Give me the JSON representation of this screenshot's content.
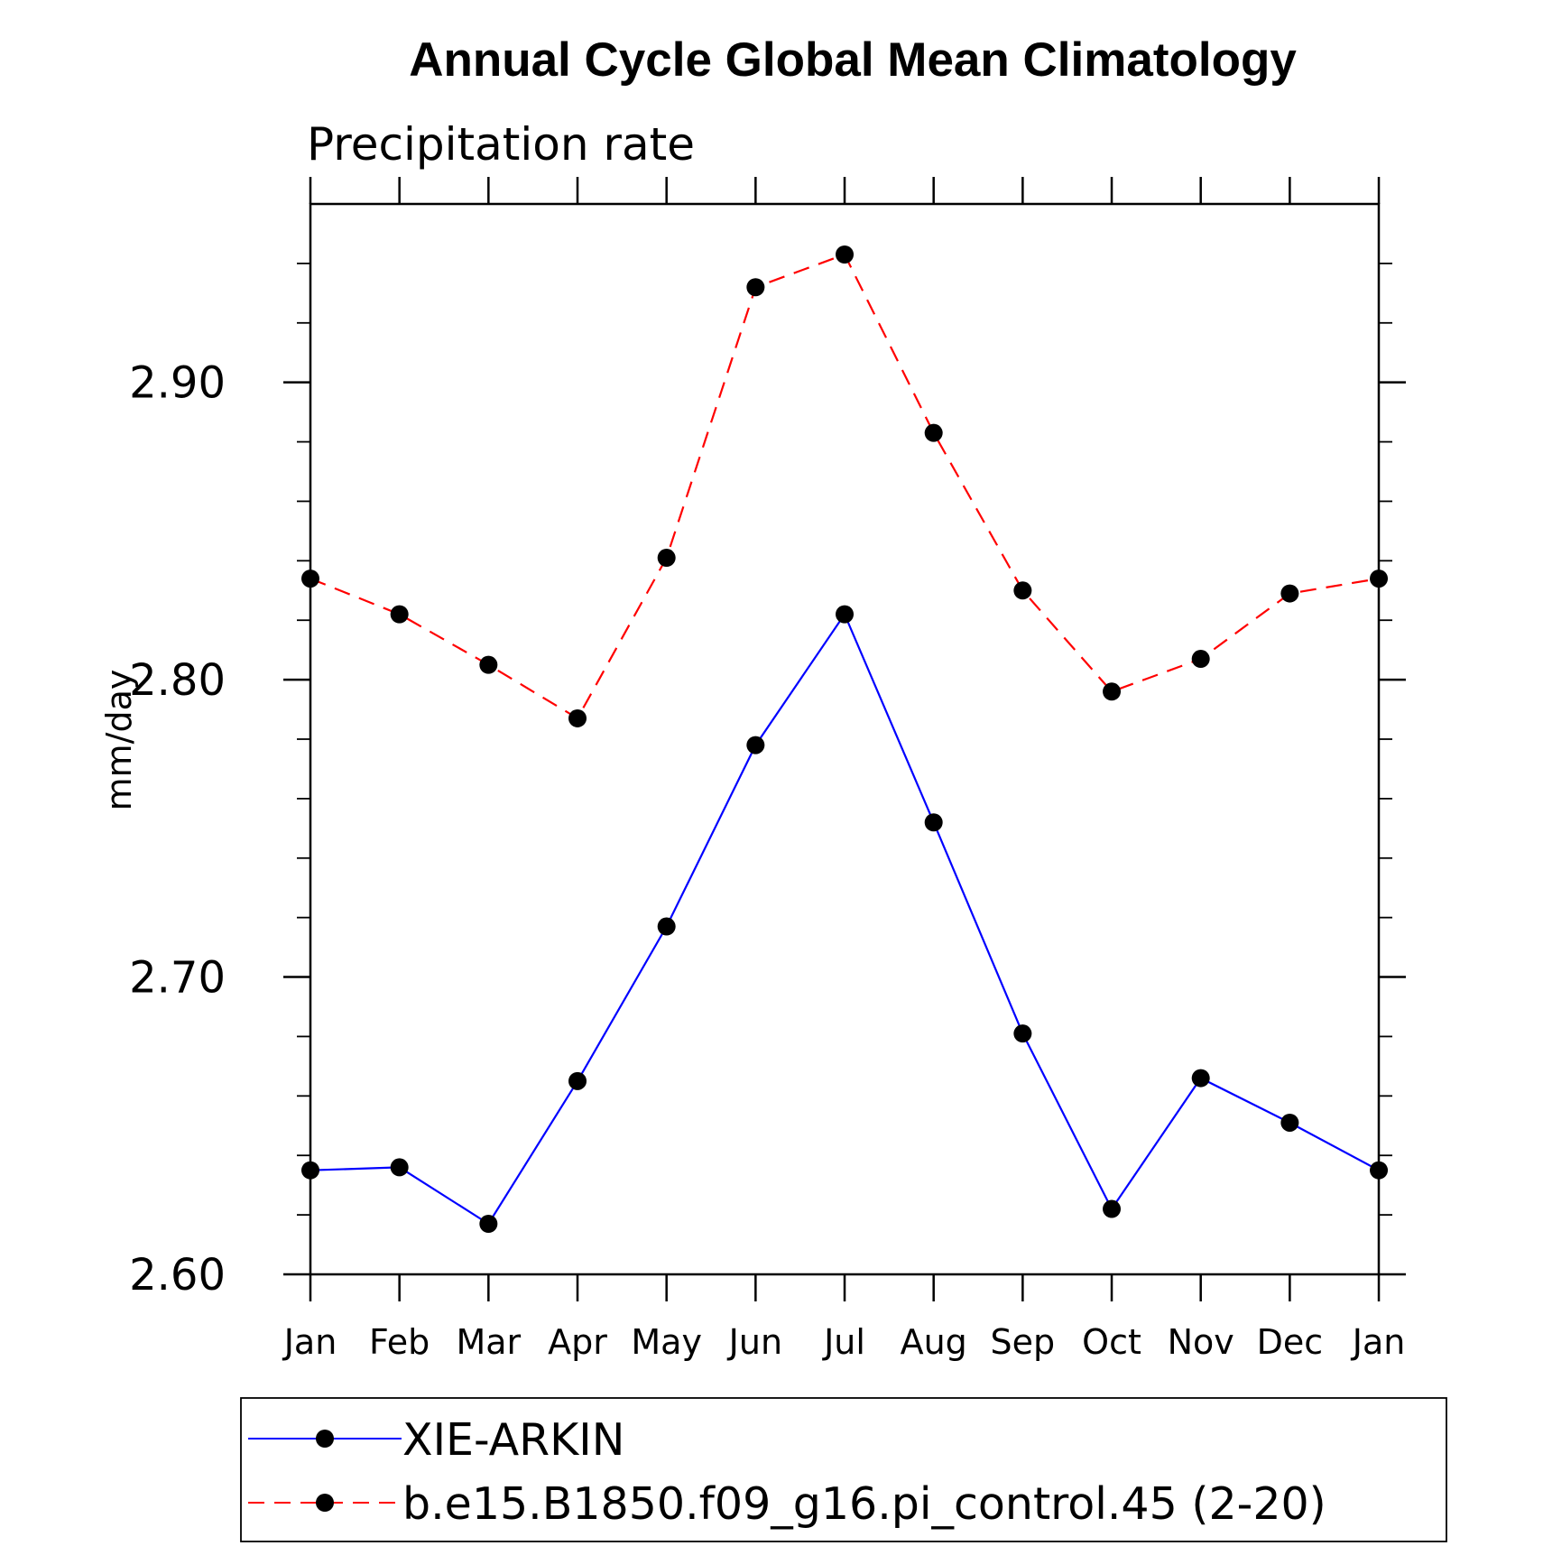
{
  "chart_data": {
    "type": "line",
    "title": "Annual Cycle Global Mean Climatology",
    "subtitle": "Precipitation rate",
    "xlabel": "",
    "ylabel": "mm/day",
    "categories": [
      "Jan",
      "Feb",
      "Mar",
      "Apr",
      "May",
      "Jun",
      "Jul",
      "Aug",
      "Sep",
      "Oct",
      "Nov",
      "Dec",
      "Jan"
    ],
    "ylim": [
      2.6,
      2.96
    ],
    "yticks": [
      2.6,
      2.7,
      2.8,
      2.9
    ],
    "ytick_labels": [
      "2.60",
      "2.70",
      "2.80",
      "2.90"
    ],
    "y_minor_step": 0.02,
    "grid": false,
    "legend_position": "bottom",
    "series": [
      {
        "name": "XIE-ARKIN",
        "color": "#0000ff",
        "line_style": "solid",
        "marker": "filled-circle",
        "values": [
          2.635,
          2.636,
          2.617,
          2.665,
          2.717,
          2.778,
          2.822,
          2.752,
          2.681,
          2.622,
          2.666,
          2.651,
          2.635
        ]
      },
      {
        "name": "b.e15.B1850.f09_g16.pi_control.45 (2-20)",
        "color": "#ff0000",
        "line_style": "dashed",
        "marker": "filled-circle",
        "values": [
          2.834,
          2.822,
          2.805,
          2.787,
          2.841,
          2.932,
          2.943,
          2.883,
          2.83,
          2.796,
          2.807,
          2.829,
          2.834
        ]
      }
    ]
  }
}
